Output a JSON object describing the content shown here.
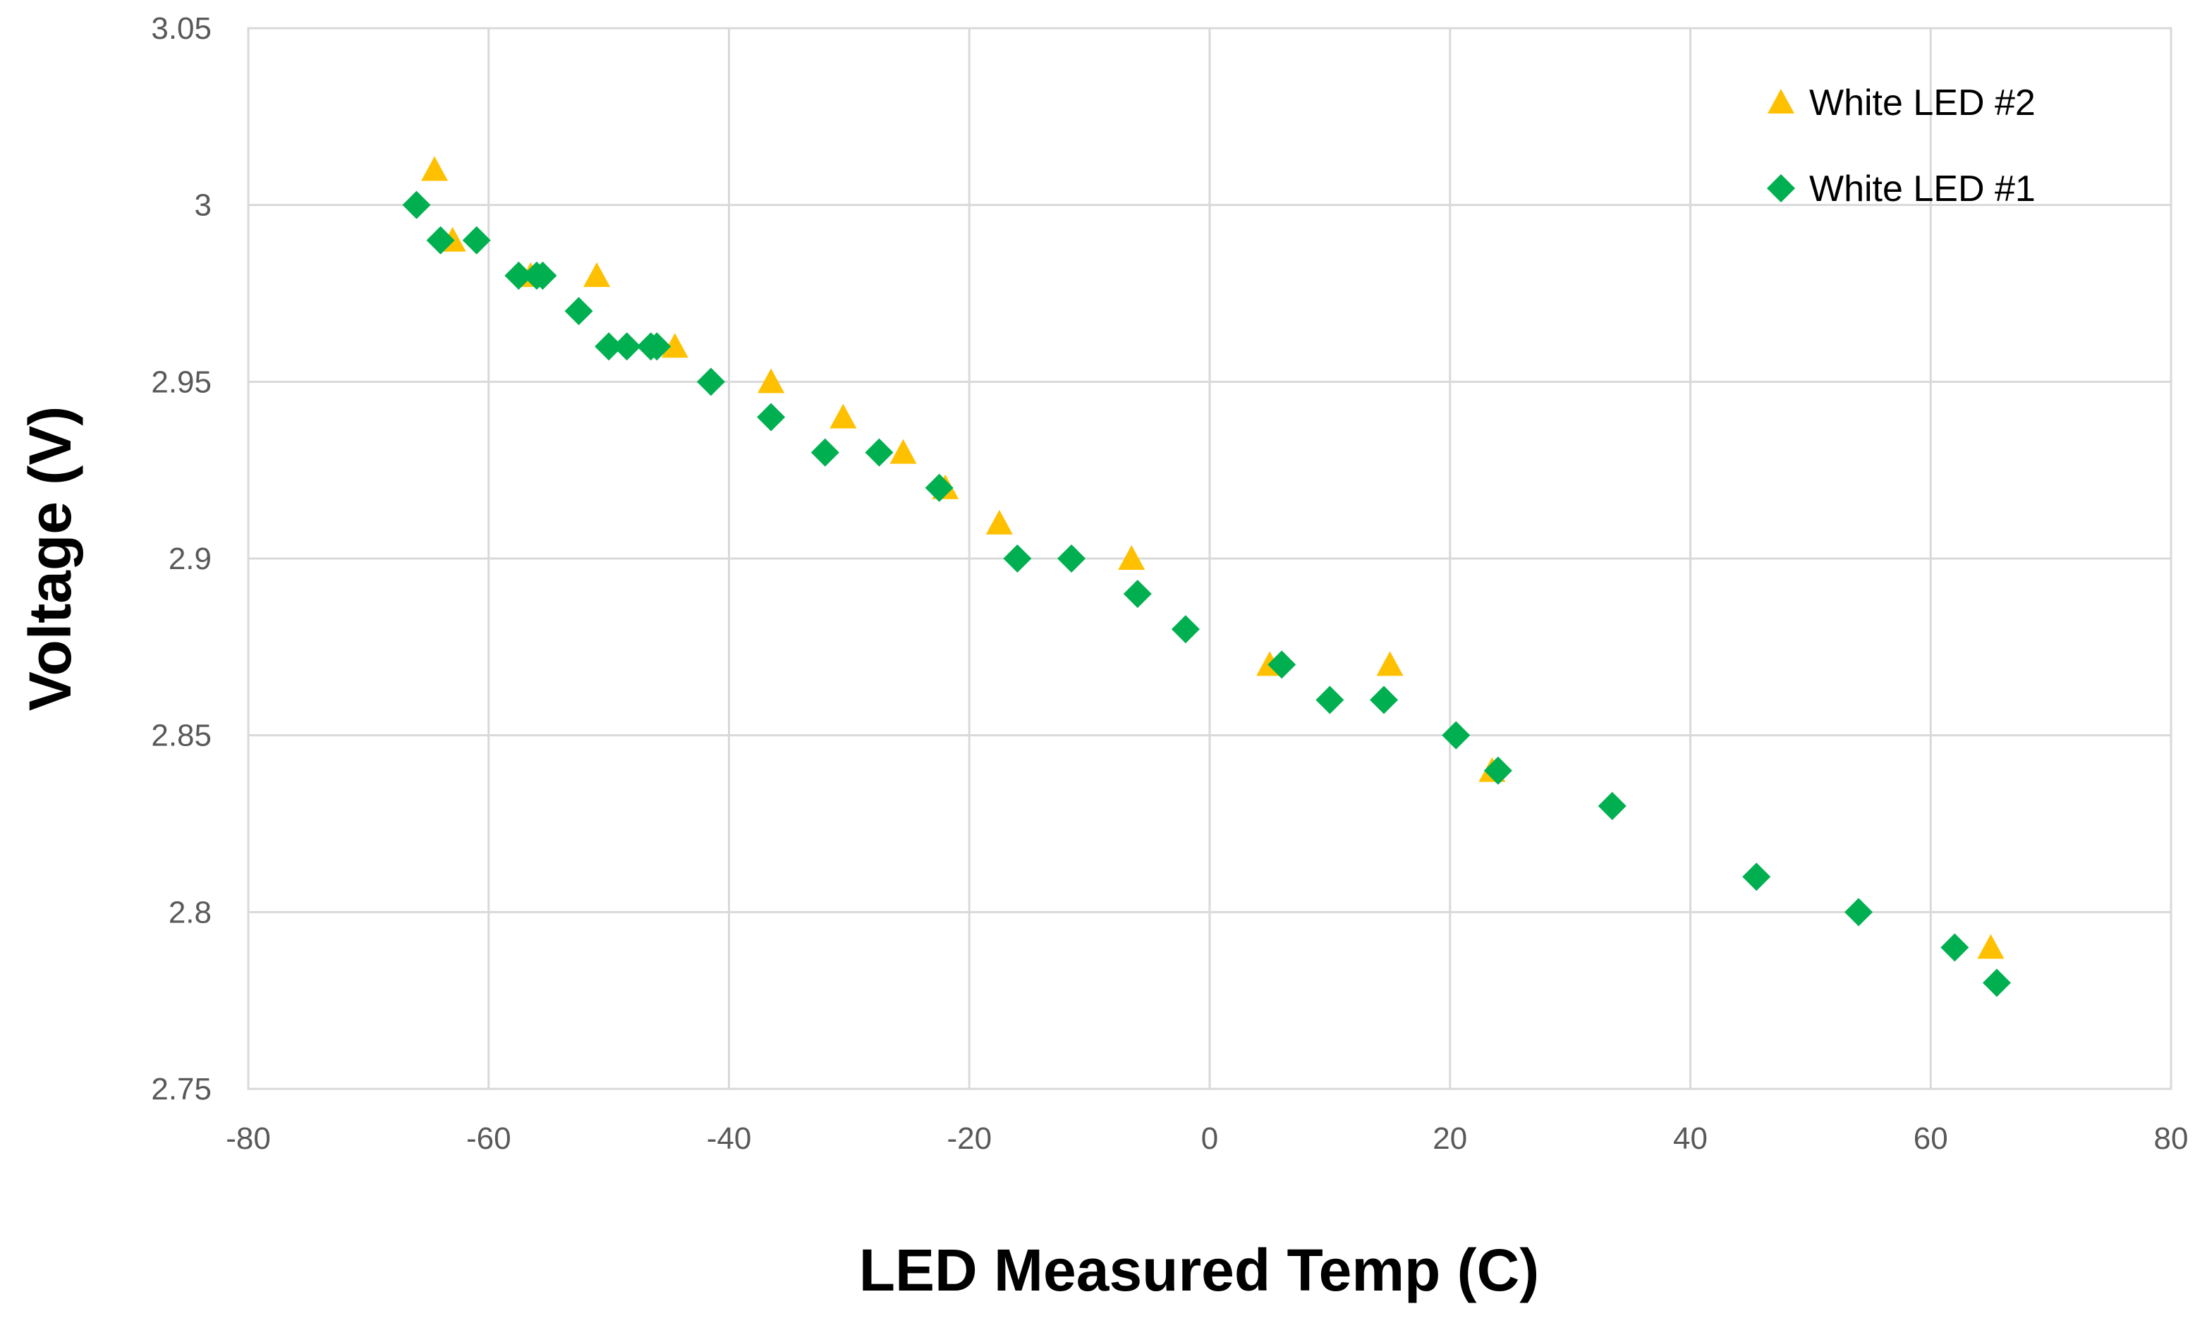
{
  "chart_data": {
    "type": "scatter",
    "title": "",
    "xlabel": "LED Measured Temp (C)",
    "ylabel": "Voltage (V)",
    "xlim": [
      -80,
      80
    ],
    "ylim": [
      2.75,
      3.05
    ],
    "xticks": [
      -80,
      -60,
      -40,
      -20,
      0,
      20,
      40,
      60,
      80
    ],
    "yticks": [
      2.75,
      2.8,
      2.85,
      2.9,
      2.95,
      3.0,
      3.05
    ],
    "xtick_labels": [
      "-80",
      "-60",
      "-40",
      "-20",
      "0",
      "20",
      "40",
      "60",
      "80"
    ],
    "ytick_labels": [
      "2.75",
      "2.8",
      "2.85",
      "2.9",
      "2.95",
      "3",
      "3.05"
    ],
    "grid": true,
    "legend_position": "top-right",
    "series": [
      {
        "name": "White LED #2",
        "marker": "triangle",
        "color": "#FFC000",
        "x": [
          -64.5,
          -63,
          -56.5,
          -51,
          -44.5,
          -36.5,
          -30.5,
          -25.5,
          -22,
          -17.5,
          -6.5,
          5,
          15,
          23.5,
          65
        ],
        "y": [
          3.01,
          2.99,
          2.98,
          2.98,
          2.96,
          2.95,
          2.94,
          2.93,
          2.92,
          2.91,
          2.9,
          2.87,
          2.87,
          2.84,
          2.79
        ]
      },
      {
        "name": "White LED #1",
        "marker": "diamond",
        "color": "#00B050",
        "x": [
          -66,
          -64,
          -61,
          -57.5,
          -56,
          -55.5,
          -52.5,
          -50,
          -48.5,
          -46.5,
          -46,
          -41.5,
          -36.5,
          -32,
          -27.5,
          -22.5,
          -16,
          -11.5,
          -6,
          -2,
          6,
          10,
          14.5,
          20.5,
          24,
          33.5,
          45.5,
          54,
          62,
          65.5
        ],
        "y": [
          3.0,
          2.99,
          2.99,
          2.98,
          2.98,
          2.98,
          2.97,
          2.96,
          2.96,
          2.96,
          2.96,
          2.95,
          2.94,
          2.93,
          2.93,
          2.92,
          2.9,
          2.9,
          2.89,
          2.88,
          2.87,
          2.86,
          2.86,
          2.85,
          2.84,
          2.83,
          2.81,
          2.8,
          2.79,
          2.78
        ]
      }
    ]
  }
}
